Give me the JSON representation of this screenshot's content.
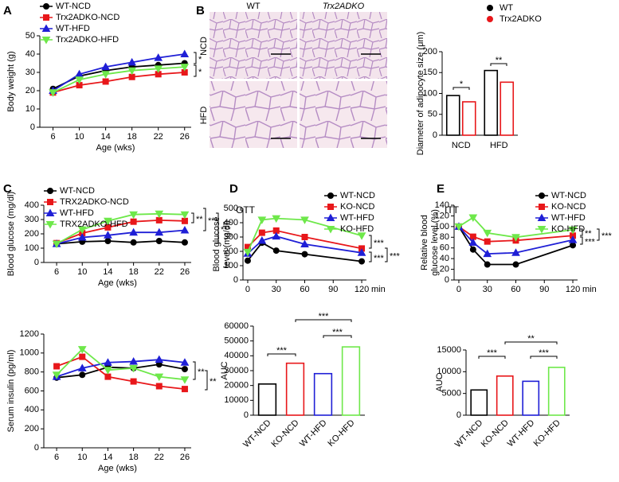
{
  "images": {
    "panel": "B",
    "columns": [
      "WT",
      "Trx2ADKO"
    ],
    "rows": [
      "NCD",
      "HFD"
    ]
  },
  "chart_data": [
    {
      "type": "line",
      "panel": "A",
      "ylabel": "Body weight (g)",
      "xlabel": "Age (wks)",
      "x": [
        6,
        10,
        14,
        18,
        22,
        26
      ],
      "xlim": [
        4,
        27
      ],
      "xticks": [
        6,
        10,
        14,
        18,
        22,
        26
      ],
      "ylim": [
        0,
        50
      ],
      "yticks": [
        0,
        10,
        20,
        30,
        40,
        50
      ],
      "legend": "top-left",
      "series": [
        {
          "name": "WT-NCD",
          "color": "#000000",
          "marker": "circle",
          "values": [
            21,
            28,
            31,
            33,
            34,
            35
          ]
        },
        {
          "name": "Trx2ADKO-NCD",
          "color": "#e8171a",
          "marker": "square",
          "values": [
            19,
            23,
            25,
            27.5,
            29,
            30
          ]
        },
        {
          "name": "WT-HFD",
          "color": "#1f1fd6",
          "marker": "triangle",
          "values": [
            20,
            29,
            33,
            35.5,
            38,
            40
          ]
        },
        {
          "name": "Trx2ADKO-HFD",
          "color": "#6ee84a",
          "marker": "triangle-down",
          "values": [
            19,
            26,
            29,
            31,
            32,
            33
          ]
        }
      ],
      "annotations": [
        "*",
        "*"
      ]
    },
    {
      "type": "bar",
      "ylabel": "Diameter of adipocyte size (μm)",
      "categories": [
        "NCD",
        "HFD"
      ],
      "ylim": [
        0,
        200
      ],
      "yticks": [
        0,
        50,
        100,
        150,
        200
      ],
      "legend": "top-right",
      "series": [
        {
          "name": "WT",
          "color": "#000000",
          "values": [
            95,
            155
          ]
        },
        {
          "name": "Trx2ADKO",
          "color": "#e8171a",
          "values": [
            80,
            127
          ]
        }
      ],
      "annotations": [
        "*",
        "**"
      ]
    },
    {
      "type": "line",
      "panel": "C",
      "ylabel": "Blood glucose (mg/dl)",
      "xlabel": "Age (wks)",
      "x": [
        6,
        10,
        14,
        18,
        22,
        26
      ],
      "xlim": [
        4,
        27
      ],
      "xticks": [
        6,
        10,
        14,
        18,
        22,
        26
      ],
      "ylim": [
        0,
        400
      ],
      "yticks": [
        0,
        100,
        200,
        300,
        400
      ],
      "legend": "top-left",
      "series": [
        {
          "name": "WT-NCD",
          "color": "#000000",
          "marker": "circle",
          "values": [
            130,
            145,
            150,
            140,
            150,
            140
          ]
        },
        {
          "name": "TRX2ADKO-NCD",
          "color": "#e8171a",
          "marker": "square",
          "values": [
            135,
            205,
            245,
            285,
            295,
            290
          ]
        },
        {
          "name": "WT-HFD",
          "color": "#1f1fd6",
          "marker": "triangle",
          "values": [
            130,
            175,
            190,
            210,
            210,
            225
          ]
        },
        {
          "name": "TRX2ADKO-HFD",
          "color": "#6ee84a",
          "marker": "triangle-down",
          "values": [
            130,
            230,
            290,
            335,
            340,
            335
          ]
        }
      ],
      "annotations": [
        "**",
        "***",
        "***"
      ]
    },
    {
      "type": "line",
      "ylabel": "Serum insulin (pg/ml)",
      "xlabel": "Age (wks)",
      "x": [
        6,
        10,
        14,
        18,
        22,
        26
      ],
      "xlim": [
        4,
        27
      ],
      "xticks": [
        6,
        10,
        14,
        18,
        22,
        26
      ],
      "ylim": [
        0,
        1200
      ],
      "yticks": [
        0,
        200,
        400,
        600,
        800,
        1000,
        1200
      ],
      "series": [
        {
          "color": "#000000",
          "marker": "circle",
          "values": [
            740,
            770,
            850,
            840,
            880,
            830
          ]
        },
        {
          "color": "#e8171a",
          "marker": "square",
          "values": [
            860,
            960,
            750,
            700,
            650,
            620
          ]
        },
        {
          "color": "#1f1fd6",
          "marker": "triangle",
          "values": [
            750,
            840,
            900,
            910,
            930,
            900
          ]
        },
        {
          "color": "#6ee84a",
          "marker": "triangle-down",
          "values": [
            770,
            1040,
            820,
            840,
            750,
            720
          ]
        }
      ],
      "annotations": [
        "**",
        "**"
      ]
    },
    {
      "type": "line",
      "panel": "D",
      "title": "GTT",
      "ylabel": [
        "Blood glucose",
        "level (mg/dl)"
      ],
      "xlabel": "min",
      "x": [
        0,
        15,
        30,
        60,
        120
      ],
      "xlim": [
        -5,
        125
      ],
      "xticks": [
        0,
        30,
        60,
        90,
        120
      ],
      "ylim": [
        0,
        500
      ],
      "yticks": [
        0,
        100,
        200,
        300,
        400,
        500
      ],
      "legend": "top-right",
      "series": [
        {
          "name": "WT-NCD",
          "color": "#000000",
          "marker": "circle",
          "values": [
            135,
            260,
            205,
            180,
            130
          ]
        },
        {
          "name": "KO-NCD",
          "color": "#e8171a",
          "marker": "square",
          "values": [
            230,
            330,
            345,
            300,
            220
          ]
        },
        {
          "name": "WT-HFD",
          "color": "#1f1fd6",
          "marker": "triangle",
          "values": [
            185,
            275,
            305,
            250,
            190
          ]
        },
        {
          "name": "KO-HFD",
          "color": "#6ee84a",
          "marker": "triangle-down",
          "values": [
            195,
            420,
            430,
            420,
            310
          ]
        }
      ],
      "annotations": [
        "***",
        "***",
        "***"
      ]
    },
    {
      "type": "bar",
      "ylabel": "AUC",
      "categories": [
        "WT-NCD",
        "KO-NCD",
        "WT-HFD",
        "KO-HFD"
      ],
      "values": [
        21000,
        35000,
        28000,
        46000
      ],
      "colors": [
        "#000000",
        "#e8171a",
        "#1f1fd6",
        "#6ee84a"
      ],
      "ylim": [
        0,
        60000
      ],
      "yticks": [
        0,
        10000,
        20000,
        30000,
        40000,
        50000,
        60000
      ],
      "annotations": [
        "***",
        "***",
        "***"
      ]
    },
    {
      "type": "line",
      "panel": "E",
      "title": "ITT",
      "ylabel": [
        "Relative blood",
        "glucose level (%)"
      ],
      "xlabel": "min",
      "x": [
        0,
        15,
        30,
        60,
        120
      ],
      "xlim": [
        -5,
        125
      ],
      "xticks": [
        0,
        30,
        60,
        90,
        120
      ],
      "ylim": [
        0,
        140
      ],
      "yticks": [
        0,
        20,
        40,
        60,
        80,
        100,
        120,
        140
      ],
      "legend": "top-right",
      "series": [
        {
          "name": "WT-NCD",
          "color": "#000000",
          "marker": "circle",
          "values": [
            100,
            57,
            29,
            29,
            65
          ]
        },
        {
          "name": "KO-NCD",
          "color": "#e8171a",
          "marker": "square",
          "values": [
            100,
            81,
            72,
            74,
            83
          ]
        },
        {
          "name": "WT-HFD",
          "color": "#1f1fd6",
          "marker": "triangle",
          "values": [
            100,
            70,
            49,
            51,
            75
          ]
        },
        {
          "name": "KO-HFD",
          "color": "#6ee84a",
          "marker": "triangle-down",
          "values": [
            100,
            117,
            88,
            80,
            94
          ]
        }
      ],
      "annotations": [
        "**",
        "***",
        "***"
      ]
    },
    {
      "type": "bar",
      "ylabel": "AUC",
      "categories": [
        "WT-NCD",
        "KO-NCD",
        "WT-HFD",
        "KO-HFD"
      ],
      "values": [
        5800,
        9000,
        7800,
        11000
      ],
      "colors": [
        "#000000",
        "#e8171a",
        "#1f1fd6",
        "#6ee84a"
      ],
      "ylim": [
        0,
        15000
      ],
      "yticks": [
        0,
        5000,
        10000,
        15000
      ],
      "annotations": [
        "***",
        "**",
        "***"
      ]
    }
  ]
}
